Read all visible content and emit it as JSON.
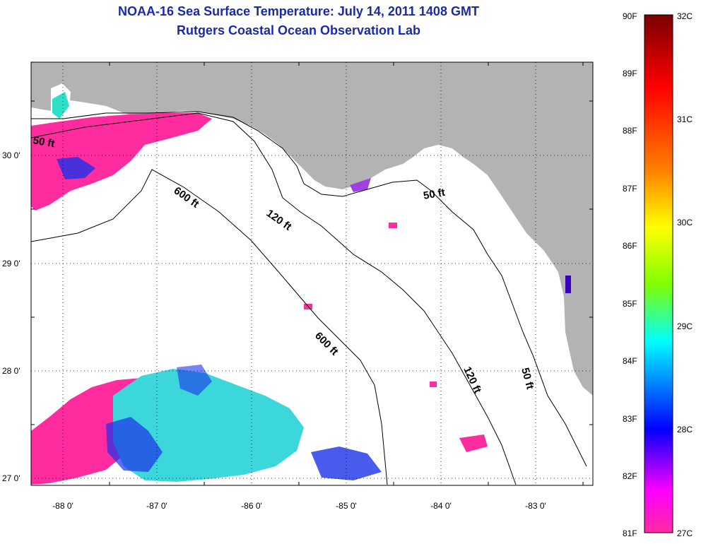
{
  "title": "NOAA-16 Sea Surface Temperature:  July 14, 2011 1408 GMT",
  "subtitle": "Rutgers Coastal Ocean Observation Lab",
  "map": {
    "latitude_labels": [
      "30 0'",
      "29 0'",
      "28 0'",
      "27 0'"
    ],
    "longitude_labels": [
      "-88 0'",
      "-87 0'",
      "-86 0'",
      "-85 0'",
      "-84 0'",
      "-83 0'"
    ],
    "grid": "dotted",
    "land_color": "#b3b3b3",
    "ocean_color": "#ffffff",
    "contour_labels": [
      "50 ft",
      "600 ft",
      "120 ft",
      "50 ft",
      "600 ft",
      "120 ft",
      "50 ft"
    ]
  },
  "colorbar": {
    "fahrenheit_labels": [
      "90F",
      "89F",
      "88F",
      "87F",
      "86F",
      "85F",
      "84F",
      "83F",
      "82F",
      "81F"
    ],
    "celsius_labels": [
      "32C",
      "31C",
      "30C",
      "29C",
      "28C",
      "27C"
    ],
    "colors": [
      "#7a0000",
      "#ff0000",
      "#ff8000",
      "#ffff00",
      "#80ff00",
      "#00ffff",
      "#0000ff",
      "#8000ff",
      "#ff00ff",
      "#ff2ca0"
    ]
  }
}
